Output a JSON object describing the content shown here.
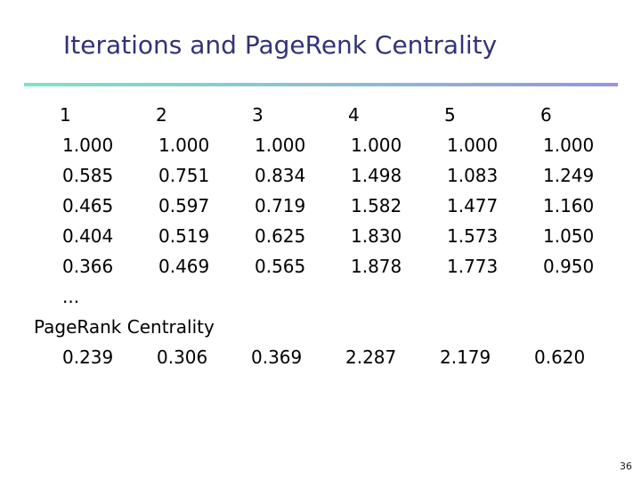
{
  "slide": {
    "title": "Iterations and PageRenk Centrality",
    "page_number": "36"
  },
  "colors": {
    "title_text": "#32327a",
    "divider_gradient_start": "#7ce4c6",
    "divider_gradient_end": "#9595dd",
    "body_text": "#000000"
  },
  "table": {
    "headers": [
      "1",
      "2",
      "3",
      "4",
      "5",
      "6"
    ],
    "rows": [
      [
        "1.000",
        "1.000",
        "1.000",
        "1.000",
        "1.000",
        "1.000"
      ],
      [
        "0.585",
        "0.751",
        "0.834",
        "1.498",
        "1.083",
        "1.249"
      ],
      [
        "0.465",
        "0.597",
        "0.719",
        "1.582",
        "1.477",
        "1.160"
      ],
      [
        "0.404",
        "0.519",
        "0.625",
        "1.830",
        "1.573",
        "1.050"
      ],
      [
        "0.366",
        "0.469",
        "0.565",
        "1.878",
        "1.773",
        "0.950"
      ]
    ],
    "ellipsis": "...",
    "footer_label": "PageRank Centrality",
    "footer_values": [
      "0.239",
      "0.306",
      "0.369",
      "2.287",
      "2.179",
      "0.620"
    ]
  }
}
